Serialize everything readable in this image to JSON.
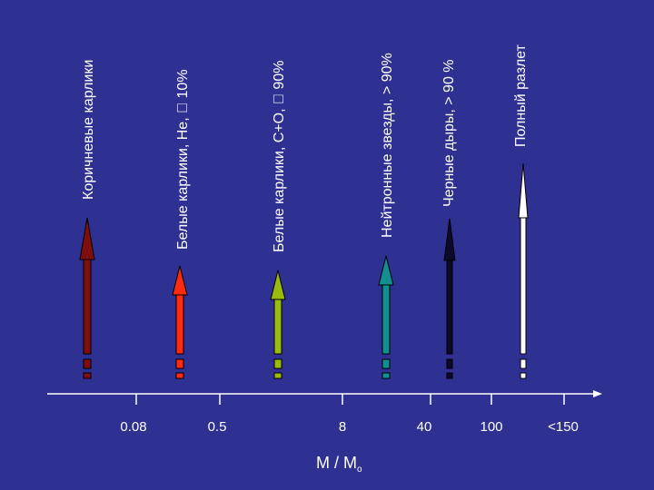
{
  "categories": [
    {
      "label": "Коричневые карлики",
      "color": "#7f0f0f"
    },
    {
      "label": "Белые карлики,   He, \u0000 10%",
      "color": "#ff2a10"
    },
    {
      "label": "Белые карлики,   C+O, \u0000 90%",
      "color": "#99bb10"
    },
    {
      "label": "Нейтронные звезды, > 90%",
      "color": "#128f8f"
    },
    {
      "label": "Черные дыры, > 90 %",
      "color": "#0a0a2a"
    },
    {
      "label": "Полный разлет",
      "color": "#ffffff"
    }
  ],
  "axis": {
    "ticks": [
      "0.08",
      "0.5",
      "8",
      "40",
      "100",
      "<150"
    ],
    "title_main": "M / M",
    "title_sub": "o"
  }
}
